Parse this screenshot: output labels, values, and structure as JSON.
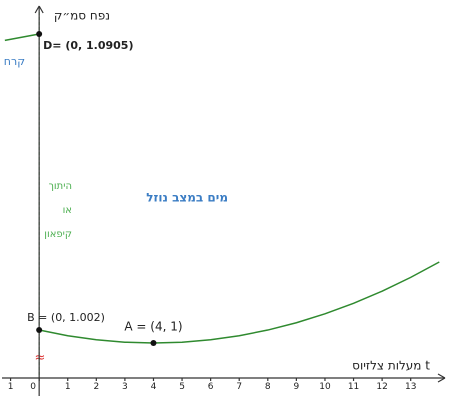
{
  "chart_data": {
    "type": "line",
    "x_label": "t מעלות צלזיוס",
    "y_label": "נפח סמ״ק",
    "xlim": [
      -1.3,
      14.2
    ],
    "xticks": [
      {
        "value": -1,
        "label": "1"
      },
      0,
      1,
      2,
      3,
      4,
      5,
      6,
      7,
      8,
      9,
      10,
      11,
      12,
      13
    ],
    "ylim": [
      0.9946,
      1.0125
    ],
    "y2lim": [
      1.087,
      1.092
    ],
    "axis_break": "≈",
    "series": [
      {
        "name": "מים במצב נוזל",
        "color": "#2f8a2f",
        "x": [
          0,
          1,
          2,
          3,
          4,
          5,
          6,
          7,
          8,
          9,
          10,
          11,
          12,
          13,
          14
        ],
        "values": [
          1.002,
          1.001125,
          1.0005,
          1.000125,
          1,
          1.000125,
          1.0005,
          1.001125,
          1.002,
          1.003125,
          1.0045,
          1.006125,
          1.008,
          1.010125,
          1.0125
        ]
      },
      {
        "name": "קרח",
        "color": "#2f8a2f",
        "axis": "y2",
        "x": [
          -1.2,
          0
        ],
        "values": [
          1.0901,
          1.0905
        ]
      }
    ],
    "melting_line": {
      "x": 0,
      "label": [
        "היתוך",
        "או",
        "קיפאון"
      ],
      "color": "#3aa63a"
    },
    "points": [
      {
        "label": "A = (4, 1)",
        "x": 4,
        "y": 1
      },
      {
        "label": "B = (0, 1.002)",
        "x": 0,
        "y": 1.002
      },
      {
        "label": "D= (0, 1.0905)",
        "x": 0,
        "y": 1.0905,
        "axis": "y2"
      }
    ]
  }
}
